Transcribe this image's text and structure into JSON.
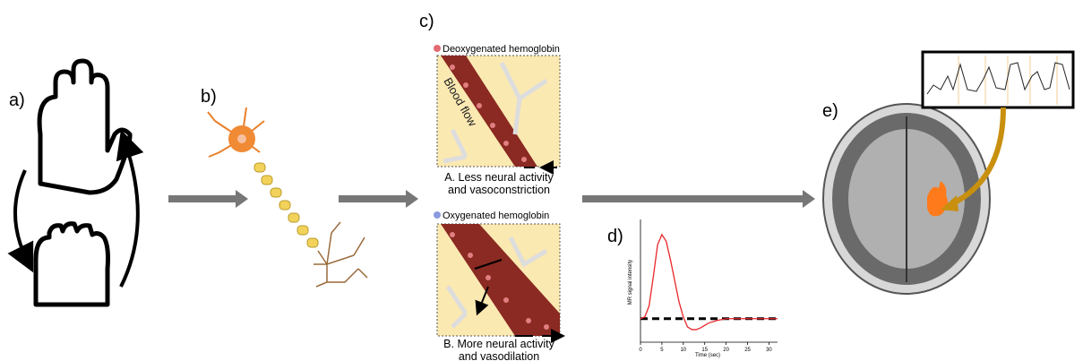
{
  "labels": {
    "a": "a)",
    "b": "b)",
    "c": "c)",
    "d": "d)",
    "e": "e)"
  },
  "panel_top": {
    "legend": "Deoxygenated hemoglobin",
    "flow": "Blood flow",
    "caption": [
      "A. Less neural activity",
      "and vasoconstriction"
    ]
  },
  "panel_bottom": {
    "legend": "Oxygenated hemoglobin",
    "caption": [
      "B. More neural activity",
      "and vasodilation"
    ]
  },
  "hrf": {
    "ylabel": "MR signal intensity",
    "xlabel": "Time (sec)",
    "color": "#e8262a",
    "x": [
      0,
      1,
      2,
      3,
      4,
      5,
      6,
      7,
      8,
      9,
      10,
      11,
      12,
      13,
      14,
      15,
      16,
      18,
      20,
      25,
      30,
      32
    ],
    "values": [
      0,
      0.02,
      0.15,
      0.5,
      0.88,
      1,
      0.92,
      0.7,
      0.45,
      0.2,
      0.02,
      -0.1,
      -0.13,
      -0.13,
      -0.11,
      -0.08,
      -0.05,
      -0.02,
      0,
      0,
      0,
      0
    ],
    "xlim": [
      0,
      32
    ],
    "ylim": [
      -0.28,
      1.18
    ],
    "xticks": [
      0,
      5,
      10,
      15,
      20,
      25,
      30
    ]
  }
}
